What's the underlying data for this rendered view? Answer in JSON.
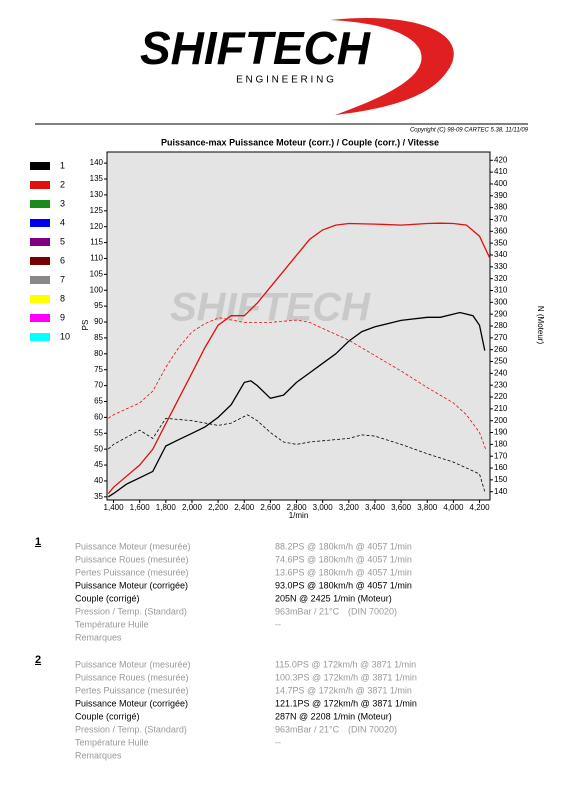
{
  "header": {
    "brand": "SHIFTECH",
    "sub": "E N G I N E E R I N G",
    "copyright": "Copyright (C) 98-09 CARTEC 5.38, 11/11/09"
  },
  "chart_data": {
    "type": "line",
    "title": "Puissance-max Puissance Moteur (corr.) / Couple (corr.) / Vitesse",
    "watermark": "SHIFTECH",
    "y_label": "PS",
    "y2_label": "N (Moteur)",
    "x_label": "1/min",
    "xlim": [
      1350,
      4280
    ],
    "xticks": [
      {
        "value": 1400,
        "label": "1,400"
      },
      {
        "value": 1600,
        "label": "1,600"
      },
      {
        "value": 1800,
        "label": "1,800"
      },
      {
        "value": 2000,
        "label": "2,000"
      },
      {
        "value": 2200,
        "label": "2,200"
      },
      {
        "value": 2400,
        "label": "2,400"
      },
      {
        "value": 2600,
        "label": "2,600"
      },
      {
        "value": 2800,
        "label": "2,800"
      },
      {
        "value": 3000,
        "label": "3,000"
      },
      {
        "value": 3200,
        "label": "3,200"
      },
      {
        "value": 3400,
        "label": "3,400"
      },
      {
        "value": 3600,
        "label": "3,600"
      },
      {
        "value": 3800,
        "label": "3,800"
      },
      {
        "value": 4000,
        "label": "4,000"
      },
      {
        "value": 4200,
        "label": "4,200"
      }
    ],
    "ylim": [
      34,
      143.5
    ],
    "yticks": [
      35,
      40,
      45,
      50,
      55,
      60,
      65,
      70,
      75,
      80,
      85,
      90,
      95,
      100,
      105,
      110,
      115,
      120,
      125,
      130,
      135,
      140
    ],
    "y2lim": [
      133,
      427
    ],
    "y2ticks": [
      140,
      150,
      160,
      170,
      180,
      190,
      200,
      210,
      220,
      230,
      240,
      250,
      260,
      270,
      280,
      290,
      300,
      310,
      320,
      330,
      340,
      350,
      360,
      370,
      380,
      390,
      400,
      410,
      420
    ],
    "background": "#e4e4e4",
    "legend": [
      {
        "name": "1",
        "color": "#000000"
      },
      {
        "name": "2",
        "color": "#e01010"
      },
      {
        "name": "3",
        "color": "#1a8a1a"
      },
      {
        "name": "4",
        "color": "#0000ee"
      },
      {
        "name": "5",
        "color": "#800080"
      },
      {
        "name": "6",
        "color": "#7a0000"
      },
      {
        "name": "7",
        "color": "#888888"
      },
      {
        "name": "8",
        "color": "#ffff00"
      },
      {
        "name": "9",
        "color": "#ff00ff"
      },
      {
        "name": "10",
        "color": "#00ffff"
      }
    ],
    "series": [
      {
        "name": "1",
        "color": "#000000",
        "axis": "y",
        "dashed": false,
        "x": [
          1360,
          1400,
          1500,
          1600,
          1700,
          1800,
          1900,
          2000,
          2100,
          2200,
          2300,
          2400,
          2450,
          2500,
          2600,
          2700,
          2800,
          2900,
          3000,
          3100,
          3200,
          3300,
          3400,
          3600,
          3800,
          3900,
          4000,
          4050,
          4150,
          4200,
          4240
        ],
        "values": [
          35,
          36,
          39,
          41,
          43,
          51,
          53,
          55,
          57,
          60,
          64,
          71,
          71.5,
          70,
          66,
          67,
          71,
          74,
          77,
          80,
          84,
          87,
          88.5,
          90.5,
          91.5,
          91.5,
          92.5,
          93,
          92,
          89,
          81
        ]
      },
      {
        "name": "1",
        "color": "#000000",
        "axis": "y2",
        "dashed": true,
        "x": [
          1360,
          1400,
          1500,
          1600,
          1700,
          1800,
          2000,
          2200,
          2300,
          2425,
          2500,
          2600,
          2700,
          2800,
          2900,
          3000,
          3200,
          3300,
          3400,
          3600,
          3800,
          4000,
          4100,
          4200,
          4240
        ],
        "values": [
          176,
          180,
          186,
          192,
          185,
          202,
          200,
          196,
          198,
          205,
          200,
          190,
          182,
          180,
          182,
          183,
          185,
          188,
          187,
          180,
          172,
          165,
          160,
          155,
          140
        ]
      },
      {
        "name": "2",
        "color": "#e01010",
        "axis": "y",
        "dashed": false,
        "x": [
          1360,
          1400,
          1600,
          1700,
          1800,
          1900,
          2000,
          2100,
          2200,
          2300,
          2400,
          2500,
          2600,
          2700,
          2800,
          2900,
          3000,
          3100,
          3200,
          3400,
          3600,
          3800,
          3900,
          4000,
          4100,
          4200,
          4280
        ],
        "values": [
          36,
          38,
          45,
          50,
          58,
          66,
          74,
          82,
          89,
          92,
          92,
          96,
          101,
          106,
          111,
          116,
          119,
          120.5,
          121,
          120.8,
          120.5,
          121,
          121.1,
          121,
          120.5,
          117,
          110
        ]
      },
      {
        "name": "2",
        "color": "#e01010",
        "axis": "y2",
        "dashed": true,
        "x": [
          1360,
          1400,
          1600,
          1700,
          1800,
          1900,
          2000,
          2100,
          2208,
          2400,
          2600,
          2800,
          2900,
          3000,
          3200,
          3400,
          3600,
          3800,
          4000,
          4100,
          4200,
          4250
        ],
        "values": [
          202,
          205,
          215,
          225,
          245,
          262,
          275,
          282,
          287,
          283,
          283,
          285,
          283,
          278,
          268,
          255,
          242,
          228,
          215,
          205,
          190,
          175
        ]
      }
    ]
  },
  "results": [
    {
      "number": "1",
      "rows": [
        [
          "Puissance Moteur (mesurée)",
          "88.2PS @ 180km/h @ 4057 1/min"
        ],
        [
          "Puissance Roues (mesurée)",
          "74.6PS @ 180km/h @ 4057 1/min"
        ],
        [
          "Pertes Puissance (mesurée)",
          "13.6PS @ 180km/h @ 4057 1/min"
        ],
        [
          "Puissance Moteur (corrigée)",
          "93.0PS @ 180km/h @ 4057 1/min"
        ],
        [
          "Couple (corrigé)",
          "205N @ 2425 1/min (Moteur)"
        ],
        [
          "Pression / Temp. (Standard)",
          "963mBar / 21°C",
          "(DIN 70020)"
        ],
        [
          "Température Huile",
          "--"
        ],
        [
          "Remarques"
        ]
      ]
    },
    {
      "number": "2",
      "rows": [
        [
          "Puissance Moteur (mesurée)",
          "115.0PS @ 172km/h @ 3871 1/min"
        ],
        [
          "Puissance Roues (mesurée)",
          "100.3PS @ 172km/h @ 3871 1/min"
        ],
        [
          "Pertes Puissance (mesurée)",
          "14.7PS @ 172km/h @ 3871 1/min"
        ],
        [
          "Puissance Moteur (corrigée)",
          "121.1PS @ 172km/h @ 3871 1/min"
        ],
        [
          "Couple (corrigé)",
          "287N @ 2208 1/min (Moteur)"
        ],
        [
          "Pression / Temp. (Standard)",
          "963mBar / 21°C",
          "(DIN 70020)"
        ],
        [
          "Température Huile",
          "--"
        ],
        [
          "Remarques"
        ]
      ]
    }
  ]
}
